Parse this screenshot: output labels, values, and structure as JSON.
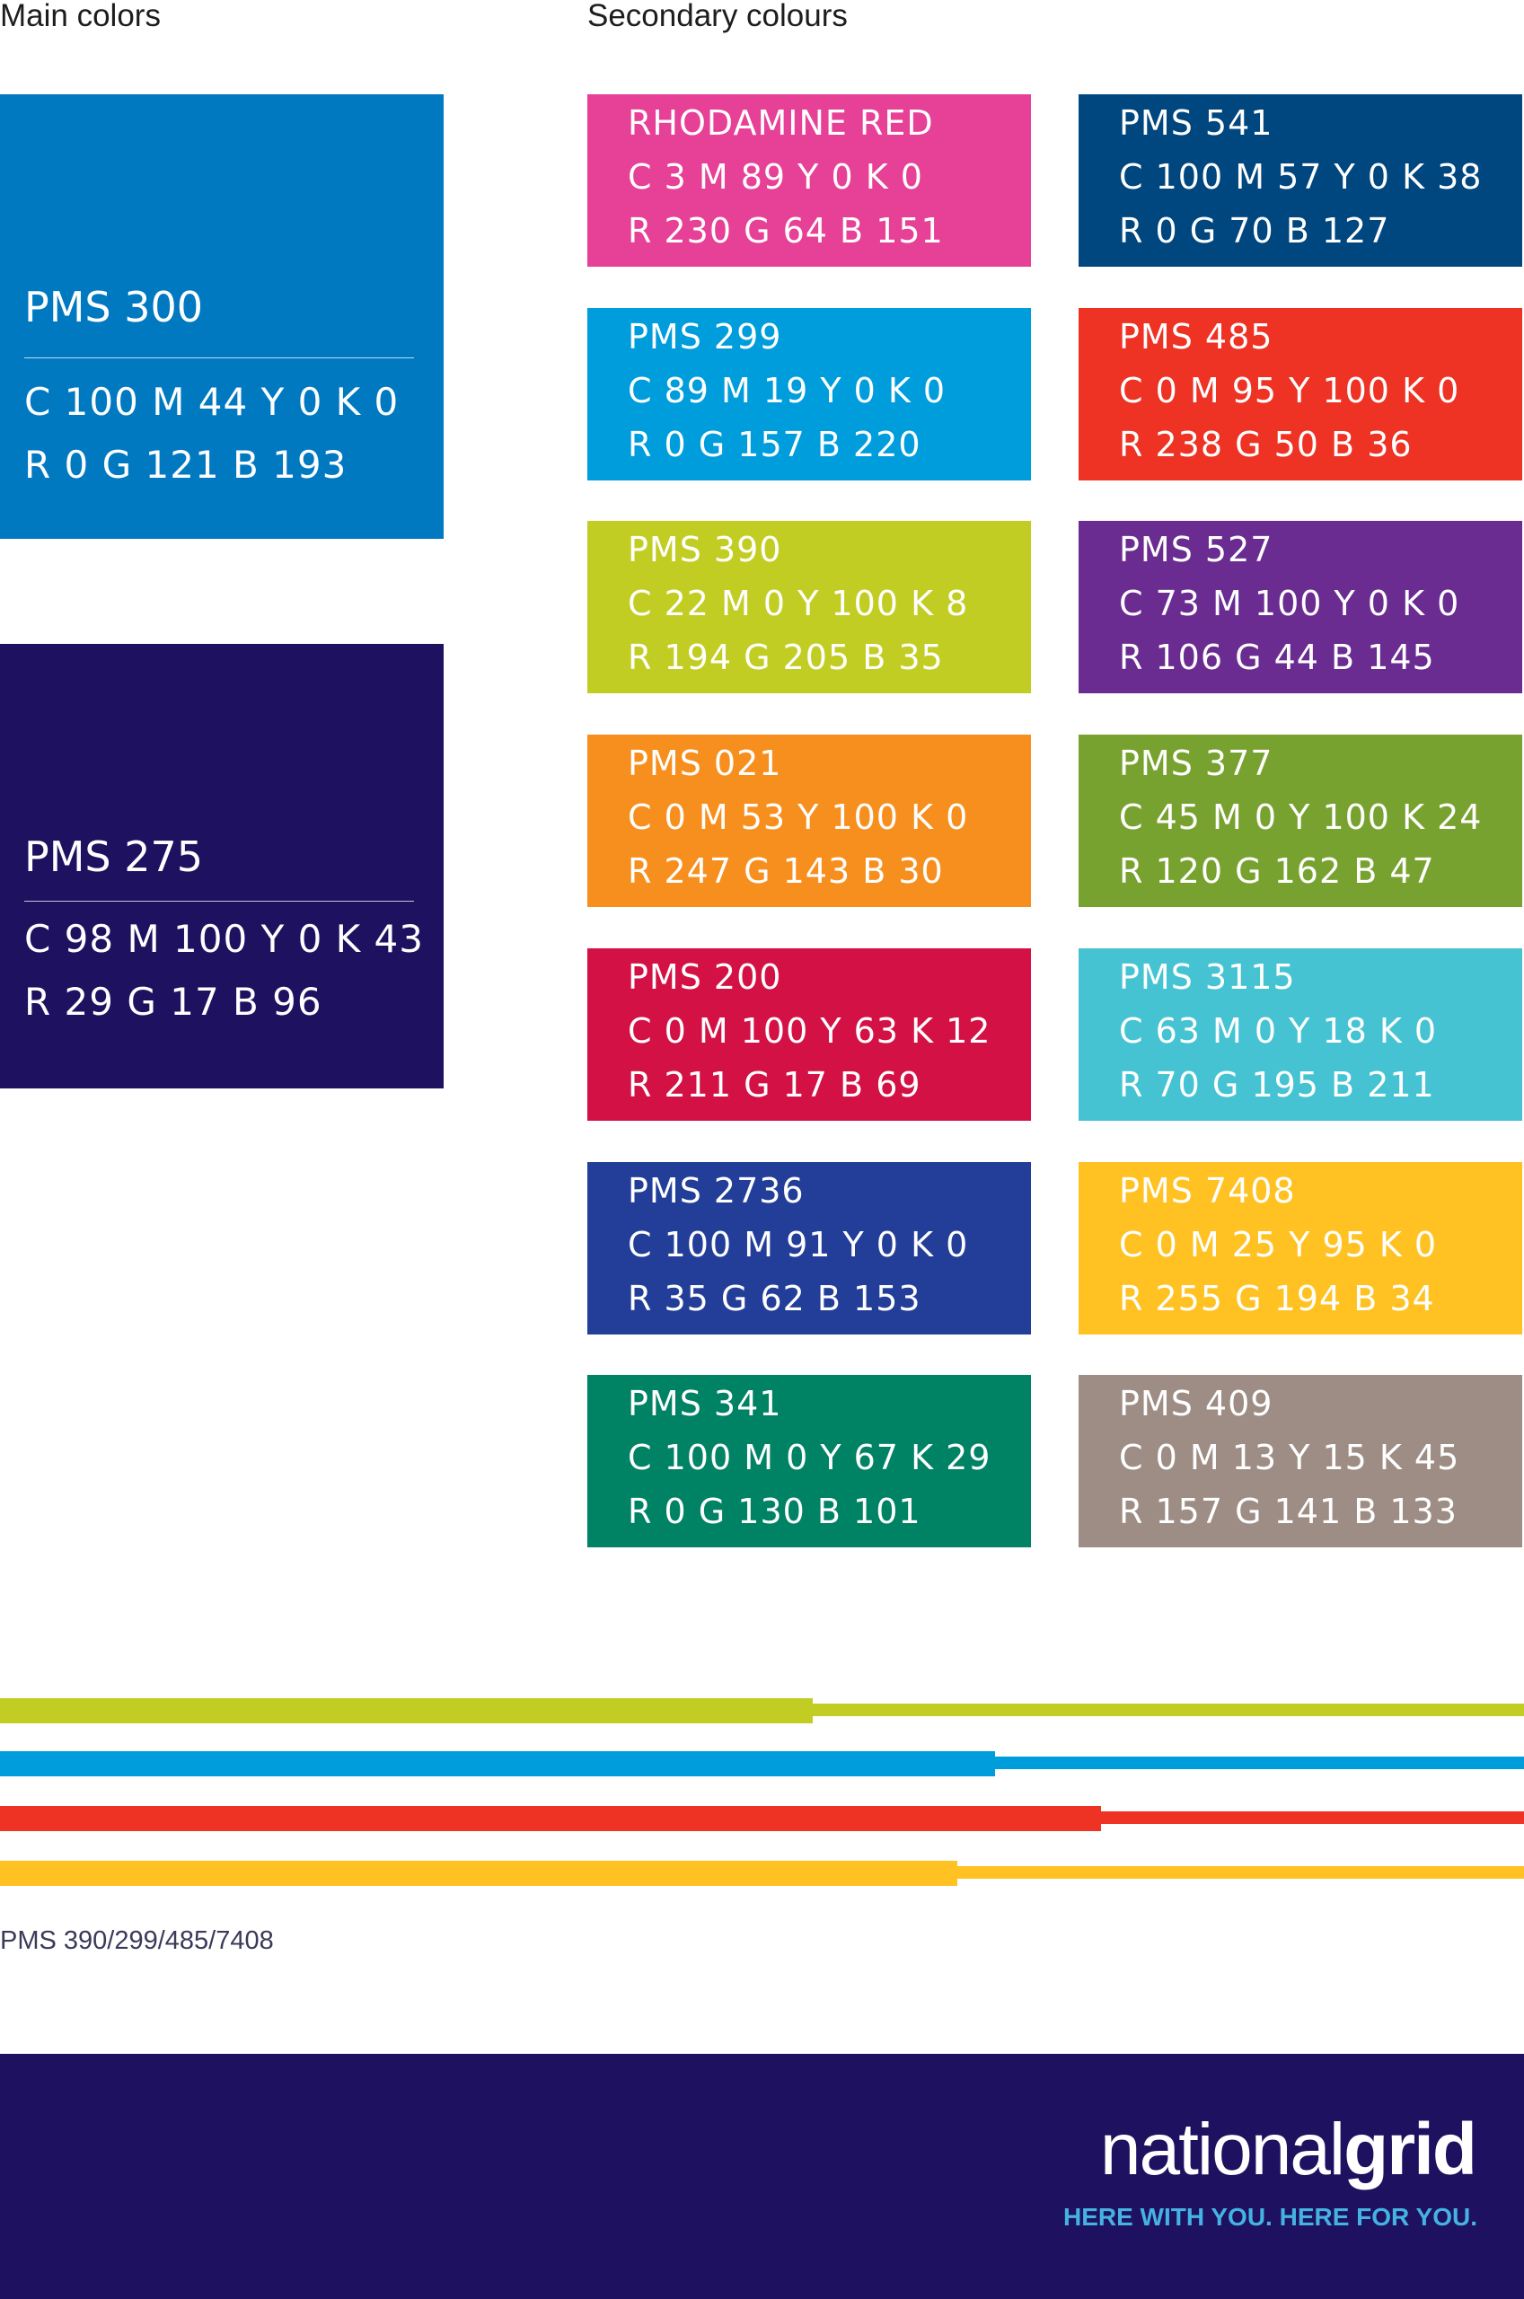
{
  "headings": {
    "main": "Main colors",
    "secondary": "Secondary colours"
  },
  "main_colors": [
    {
      "pms": "PMS 300",
      "cmyk": "C 100  M 44  Y 0  K 0",
      "rgb": "R 0  G 121  B 193",
      "hex": "#0079c1"
    },
    {
      "pms": "PMS 275",
      "cmyk": "C 98  M 100  Y 0  K 43",
      "rgb": "R 29   G 17    B 96",
      "hex": "#1d1160"
    }
  ],
  "secondary_colors": [
    {
      "name": "RHODAMINE RED",
      "cmyk": "C 3  M 89  Y 0  K 0",
      "rgb": "R 230  G 64  B 151",
      "hex": "#e64097"
    },
    {
      "name": "PMS 541",
      "cmyk": "C 100  M 57  Y 0  K 38",
      "rgb": "R 0  G 70  B 127",
      "hex": "#00467f"
    },
    {
      "name": "PMS 299",
      "cmyk": "C 89  M 19  Y 0  K 0",
      "rgb": "R 0  G 157  B 220",
      "hex": "#009ddc"
    },
    {
      "name": "PMS 485",
      "cmyk": "C 0  M 95  Y 100  K 0",
      "rgb": "R 238  G 50  B 36",
      "hex": "#ee3224"
    },
    {
      "name": "PMS 390",
      "cmyk": "C 22  M 0  Y 100  K 8",
      "rgb": "R 194  G 205  B 35",
      "hex": "#c2cd23"
    },
    {
      "name": "PMS 527",
      "cmyk": "C 73  M 100  Y 0  K 0",
      "rgb": "R 106  G 44  B 145",
      "hex": "#6a2c91"
    },
    {
      "name": "PMS 021",
      "cmyk": "C 0  M 53  Y 100  K 0",
      "rgb": "R 247  G 143  B 30",
      "hex": "#f78f1e"
    },
    {
      "name": "PMS 377",
      "cmyk": "C 45  M 0  Y 100  K 24",
      "rgb": "R 120  G 162  B 47",
      "hex": "#78a22f"
    },
    {
      "name": "PMS 200",
      "cmyk": "C 0  M 100  Y 63  K 12",
      "rgb": "R 211  G 17  B 69",
      "hex": "#d31145"
    },
    {
      "name": "PMS 3115",
      "cmyk": "C 63  M 0  Y 18  K 0",
      "rgb": "R 70  G 195  B 211",
      "hex": "#46c3d3"
    },
    {
      "name": "PMS 2736",
      "cmyk": "C 100  M 91  Y 0  K 0",
      "rgb": "R 35  G 62  B 153",
      "hex": "#233e99"
    },
    {
      "name": "PMS 7408",
      "cmyk": "C 0  M 25  Y 95  K 0",
      "rgb": "R 255  G 194  B 34",
      "hex": "#ffc222"
    },
    {
      "name": "PMS 341",
      "cmyk": "C 100  M 0  Y 67  K 29",
      "rgb": "R 0  G 130  B 101",
      "hex": "#008265"
    },
    {
      "name": "PMS 409",
      "cmyk": "C 0  M 13  Y 15  K 45",
      "rgb": "R 157  G 141  B 133",
      "hex": "#9d8d85"
    }
  ],
  "stripes": {
    "colors": [
      "#c2cd23",
      "#009ddc",
      "#ee3224",
      "#ffc222"
    ],
    "caption": "PMS 390/299/485/7408"
  },
  "footer": {
    "background": "#1d1160",
    "logo_light": "national",
    "logo_bold": "grid",
    "tagline": "HERE WITH YOU. HERE FOR YOU.",
    "tagline_color": "#46b2e2"
  }
}
